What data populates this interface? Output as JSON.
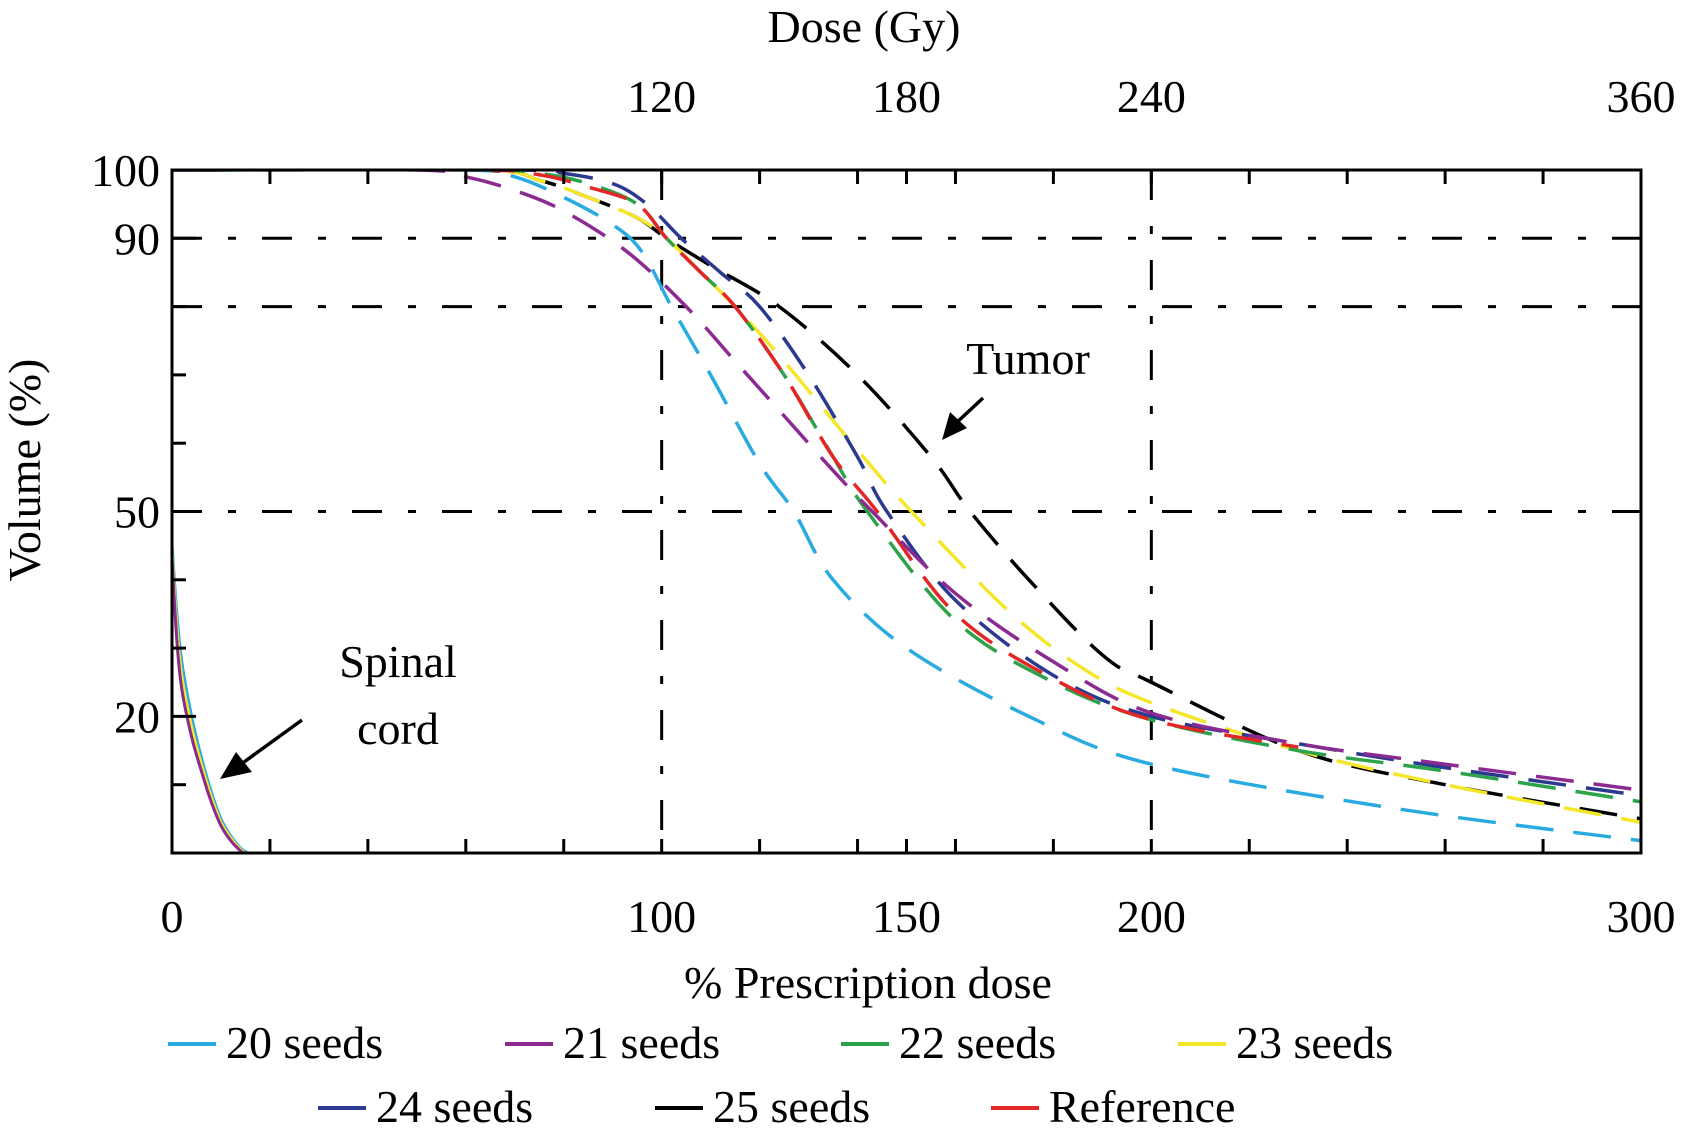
{
  "chart_data": {
    "type": "line",
    "title": "",
    "xlabel": "% Prescription dose",
    "ylabel": "Volume (%)",
    "x2label": "Dose (Gy)",
    "xlim": [
      0,
      300
    ],
    "ylim": [
      0,
      100
    ],
    "x_tick_labels": [
      {
        "value": 0,
        "label": "0"
      },
      {
        "value": 100,
        "label": "100"
      },
      {
        "value": 150,
        "label": "150"
      },
      {
        "value": 200,
        "label": "200"
      },
      {
        "value": 300,
        "label": "300"
      }
    ],
    "x_minor_ticks": [
      20,
      40,
      60,
      80,
      120,
      140,
      160,
      180,
      220,
      240,
      260,
      280
    ],
    "x2_tick_labels": [
      {
        "value": 100,
        "label": "120"
      },
      {
        "value": 150,
        "label": "180"
      },
      {
        "value": 200,
        "label": "240"
      },
      {
        "value": 300,
        "label": "360"
      }
    ],
    "y_tick_labels": [
      {
        "value": 20,
        "label": "20"
      },
      {
        "value": 50,
        "label": "50"
      },
      {
        "value": 90,
        "label": "90"
      },
      {
        "value": 100,
        "label": "100"
      }
    ],
    "y_minor_ticks": [
      10,
      30,
      40,
      60,
      70,
      80
    ],
    "h_gridlines": [
      90,
      80,
      50
    ],
    "v_gridlines": [
      100,
      200
    ],
    "grid_style": "dash-dot",
    "legend": {
      "placement": "bottom",
      "entries": [
        "20 seeds",
        "21 seeds",
        "22 seeds",
        "23 seeds",
        "24 seeds",
        "25 seeds",
        "Reference"
      ]
    },
    "annotations": [
      {
        "text": "Tumor",
        "points_to": [
          148,
          68
        ]
      },
      {
        "text_lines": [
          "Spinal",
          "cord"
        ],
        "points_to": [
          10,
          14
        ]
      }
    ],
    "series": [
      {
        "name": "20 seeds",
        "color": "#29aae1",
        "style": "dashed",
        "group": "tumor",
        "x": [
          0,
          60,
          70,
          80,
          90,
          96,
          102,
          110,
          120,
          127,
          135,
          150,
          175,
          200,
          250,
          300
        ],
        "y": [
          100,
          100,
          99,
          96,
          92,
          88,
          80,
          70,
          57,
          50,
          40,
          30,
          20,
          13,
          6.5,
          1.8
        ]
      },
      {
        "name": "21 seeds",
        "color": "#8b2a90",
        "style": "dashed",
        "group": "tumor",
        "x": [
          0,
          50,
          60,
          70,
          80,
          93,
          105,
          115,
          125,
          135,
          143,
          160,
          180,
          200,
          230,
          260,
          300
        ],
        "y": [
          100,
          100,
          99,
          97,
          94,
          88,
          80,
          72,
          64,
          56,
          50,
          38,
          28,
          20.5,
          16,
          13,
          9.2
        ]
      },
      {
        "name": "22 seeds",
        "color": "#2ca24a",
        "style": "dashed",
        "group": "tumor",
        "x": [
          0,
          62,
          75,
          85,
          95,
          101,
          108,
          115,
          125,
          135,
          142,
          160,
          180,
          200,
          230,
          260,
          300
        ],
        "y": [
          100,
          100,
          99.5,
          98,
          95,
          90,
          85,
          80,
          70,
          58,
          50,
          34,
          25,
          19.5,
          15,
          12,
          7.5
        ]
      },
      {
        "name": "23 seeds",
        "color": "#f5e62a",
        "style": "dashed",
        "group": "tumor",
        "x": [
          0,
          62,
          75,
          85,
          95,
          101,
          108,
          115,
          125,
          140,
          151,
          170,
          185,
          200,
          230,
          260,
          300
        ],
        "y": [
          100,
          100,
          98.5,
          96,
          93,
          90,
          85,
          80,
          72,
          59,
          50,
          36,
          27.5,
          22,
          15,
          10,
          4.5
        ]
      },
      {
        "name": "24 seeds",
        "color": "#2b3990",
        "style": "dashed",
        "group": "tumor",
        "x": [
          0,
          70,
          80,
          90,
          97,
          104,
          112,
          120,
          130,
          140,
          146,
          160,
          180,
          200,
          230,
          260,
          300
        ],
        "y": [
          100,
          100,
          99.5,
          98,
          95,
          90,
          85,
          80,
          70,
          58,
          50,
          37,
          26,
          20,
          16,
          12.5,
          8.4
        ]
      },
      {
        "name": "25 seeds",
        "color": "#000000",
        "style": "dashed",
        "group": "tumor",
        "x": [
          0,
          62,
          75,
          85,
          95,
          101,
          110,
          124,
          140,
          155,
          163,
          175,
          190,
          200,
          230,
          260,
          300
        ],
        "y": [
          100,
          100,
          98.5,
          96,
          93,
          90,
          86,
          80,
          70,
          58,
          50,
          40,
          29,
          25,
          15,
          10,
          5
        ]
      },
      {
        "name": "Reference",
        "color": "#e42626",
        "style": "dashed",
        "group": "tumor",
        "x": [
          0,
          62,
          75,
          85,
          95,
          101,
          108,
          115,
          125,
          135,
          144,
          160,
          180,
          200,
          230
        ],
        "y": [
          100,
          100,
          99.3,
          97.5,
          95,
          90,
          85,
          80,
          70,
          58,
          50,
          35,
          25.5,
          19.5,
          15.5
        ]
      },
      {
        "name": "20 seeds (spinal cord)",
        "color": "#29aae1",
        "style": "solid",
        "group": "spinal-cord",
        "x": [
          0,
          1,
          2,
          4,
          6,
          8,
          10,
          12,
          14,
          15.5
        ],
        "y": [
          45,
          35,
          28,
          20,
          14,
          9,
          5,
          2.5,
          0.7,
          0
        ]
      },
      {
        "name": "23 seeds (spinal cord)",
        "color": "#f5e62a",
        "style": "solid",
        "group": "spinal-cord",
        "x": [
          0,
          1,
          2,
          4,
          6,
          8,
          10,
          12,
          14,
          15
        ],
        "y": [
          44,
          33,
          26,
          18.5,
          13,
          8.3,
          4.5,
          2.2,
          0.5,
          0
        ]
      },
      {
        "name": "21 seeds (spinal cord)",
        "color": "#8b2a90",
        "style": "solid",
        "group": "spinal-cord",
        "x": [
          0,
          1,
          2,
          4,
          6,
          8,
          10,
          12,
          14,
          14.7
        ],
        "y": [
          43,
          31,
          24,
          17,
          12,
          7.5,
          4,
          1.8,
          0.3,
          0
        ]
      }
    ]
  }
}
